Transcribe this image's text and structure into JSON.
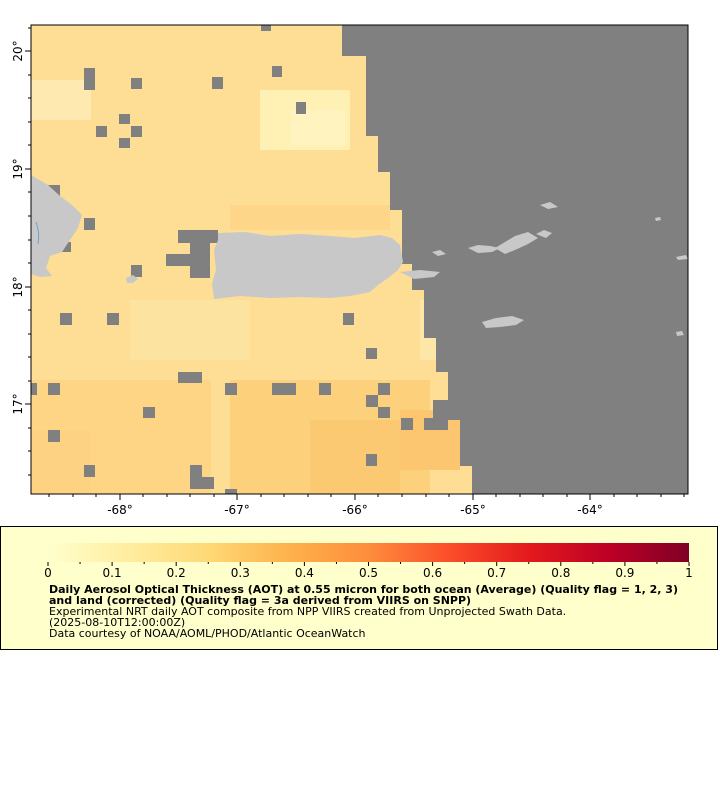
{
  "map": {
    "longitude_ticks": [
      "-68°",
      "-67°",
      "-66°",
      "-65°",
      "-64°"
    ],
    "latitude_ticks": [
      "20°",
      "19°",
      "18°",
      "17°"
    ],
    "colors": {
      "no_data": "#808080",
      "land": "#c8c8c8",
      "frame": "#000000"
    }
  },
  "legend": {
    "colorbar_ticks": [
      "0",
      "0.1",
      "0.2",
      "0.3",
      "0.4",
      "0.5",
      "0.6",
      "0.7",
      "0.8",
      "0.9",
      "1"
    ],
    "colormap_stops": [
      "#ffffcc",
      "#ffeda0",
      "#fed976",
      "#feb24c",
      "#fd8d3c",
      "#fc4e2a",
      "#e31a1c",
      "#bd0026",
      "#800026"
    ],
    "title": "Daily Aerosol Optical Thickness (AOT) at 0.55 micron for both ocean (Average) (Quality flag = 1, 2, 3) and land (corrected) (Quality flag = 3a derived from VIIRS on SNPP)",
    "description": "Experimental NRT daily AOT composite from NPP VIIRS created from Unprojected Swath Data.",
    "time": "(2025-08-10T12:00:00Z)",
    "credit": "Data courtesy of NOAA/AOML/PHOD/Atlantic OceanWatch"
  }
}
